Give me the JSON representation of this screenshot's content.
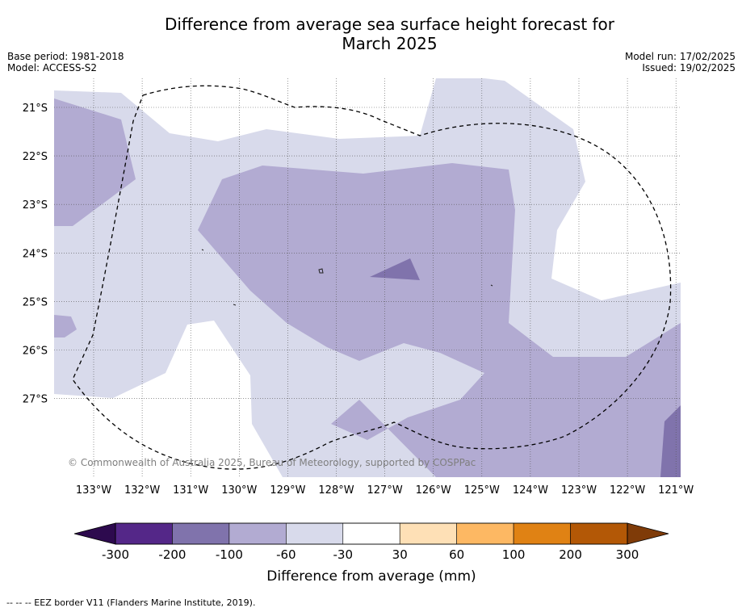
{
  "title_line1": "Difference from average sea surface height forecast for",
  "title_line2": "March 2025",
  "base_period": "Base period: 1981-2018",
  "model": "Model: ACCESS-S2",
  "model_run": "Model run: 17/02/2025",
  "issued": "Issued: 19/02/2025",
  "copyright": "© Commonwealth of Australia 2025, Bureau of Meteorology, supported by COSPPac",
  "latitudes": [
    "21°S",
    "22°S",
    "23°S",
    "24°S",
    "25°S",
    "26°S",
    "27°S"
  ],
  "longitudes": [
    "133°W",
    "132°W",
    "131°W",
    "130°W",
    "129°W",
    "128°W",
    "127°W",
    "126°W",
    "125°W",
    "124°W",
    "123°W",
    "122°W",
    "121°W"
  ],
  "colorbar": {
    "title": "Difference from average (mm)",
    "labels": [
      "-300",
      "-200",
      "-100",
      "-60",
      "-30",
      "30",
      "60",
      "100",
      "200",
      "300"
    ],
    "under_color": "#2d0a4e",
    "over_color": "#7f3b08",
    "colors": [
      "#542788",
      "#8073ac",
      "#b2abd2",
      "#d8daeb",
      "#ffffff",
      "#fee0b6",
      "#fdb863",
      "#e08214",
      "#b35806"
    ]
  },
  "footer": "-- -- -- EEZ border V11 (Flanders Marine Institute, 2019)."
}
